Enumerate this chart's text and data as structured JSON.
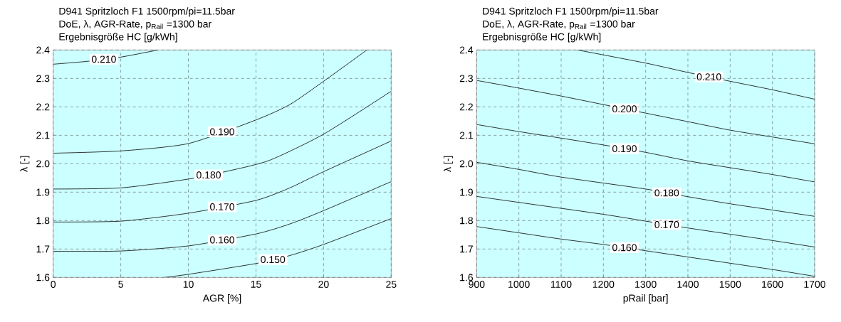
{
  "chart_data": [
    {
      "type": "line",
      "title": "D941 Spritzloch F1 1500rpm/pi=11.5bar",
      "subtitle": "DoE, λ, AGR-Rate, p$_{Rail}$ =1300 bar",
      "annotations": [
        "Ergebnisgröße HC [g/kWh]"
      ],
      "xlabel": "AGR [%]",
      "ylabel": "λ [-]",
      "xlim": [
        0,
        25
      ],
      "ylim": [
        1.6,
        2.4
      ],
      "xticks": [
        0,
        5,
        10,
        15,
        20,
        25
      ],
      "yticks": [
        1.6,
        1.7,
        1.8,
        1.9,
        {
          "value": 2,
          "label": "2.0"
        },
        2.1,
        2.2,
        2.3,
        2.4
      ],
      "grid": true,
      "bands": [
        {
          "axis": "y",
          "from": 1.6,
          "to": 2.4,
          "color": "#ccffff"
        }
      ],
      "series": [
        {
          "name": "0.150",
          "color": "#000000",
          "x": [
            8.2,
            10,
            15,
            17.5,
            20,
            25
          ],
          "values": [
            1.6,
            1.611,
            1.649,
            1.677,
            1.716,
            1.807
          ]
        },
        {
          "name": "0.160",
          "color": "#000000",
          "x": [
            0,
            5,
            10,
            15,
            17.5,
            20,
            25
          ],
          "values": [
            1.692,
            1.693,
            1.711,
            1.753,
            1.788,
            1.835,
            1.937
          ]
        },
        {
          "name": "0.170",
          "color": "#000000",
          "x": [
            0,
            5,
            10,
            15,
            17.5,
            20,
            25
          ],
          "values": [
            1.795,
            1.798,
            1.826,
            1.871,
            1.915,
            1.972,
            2.08
          ]
        },
        {
          "name": "0.180",
          "color": "#000000",
          "x": [
            0,
            5,
            10,
            13,
            16,
            20,
            25
          ],
          "values": [
            1.911,
            1.915,
            1.946,
            1.975,
            2.012,
            2.104,
            2.255
          ]
        },
        {
          "name": "0.190",
          "color": "#000000",
          "x": [
            0,
            5,
            10,
            15,
            17.5,
            20,
            23.2
          ],
          "values": [
            2.037,
            2.045,
            2.071,
            2.154,
            2.208,
            2.29,
            2.4
          ]
        },
        {
          "name": "0.210",
          "color": "#000000",
          "x": [
            0,
            2.5,
            5,
            7.75
          ],
          "values": [
            2.35,
            2.36,
            2.375,
            2.4
          ]
        }
      ]
    },
    {
      "type": "line",
      "title": "D941 Spritzloch F1 1500rpm/pi=11.5bar",
      "subtitle": "DoE, λ, AGR-Rate, p$_{Rail}$ =1300 bar",
      "annotations": [
        "Ergebnisgröße HC [g/kWh]"
      ],
      "xlabel": "pRail [bar]",
      "ylabel": "λ [-]",
      "xlim": [
        900,
        1700
      ],
      "ylim": [
        1.6,
        2.4
      ],
      "xticks": [
        900,
        1000,
        1100,
        1200,
        1300,
        1400,
        1500,
        1600,
        1700
      ],
      "yticks": [
        1.6,
        1.7,
        1.8,
        1.9,
        {
          "value": 2,
          "label": "2.0"
        },
        2.1,
        2.2,
        2.3,
        2.4
      ],
      "grid": true,
      "bands": [
        {
          "axis": "y",
          "from": 1.6,
          "to": 2.4,
          "color": "#ccffff"
        }
      ],
      "series": [
        {
          "name": "0.160",
          "color": "#000000",
          "x": [
            900,
            1000,
            1100,
            1200,
            1300,
            1400,
            1500,
            1600,
            1700
          ],
          "values": [
            1.779,
            1.757,
            1.735,
            1.716,
            1.694,
            1.672,
            1.65,
            1.628,
            1.604
          ]
        },
        {
          "name": "0.170",
          "color": "#000000",
          "x": [
            900,
            1000,
            1200,
            1300,
            1400,
            1500,
            1600,
            1700
          ],
          "values": [
            1.885,
            1.864,
            1.822,
            1.798,
            1.774,
            1.752,
            1.73,
            1.707
          ]
        },
        {
          "name": "0.180",
          "color": "#000000",
          "x": [
            900,
            1000,
            1100,
            1300,
            1400,
            1500,
            1600,
            1700
          ],
          "values": [
            2.005,
            1.98,
            1.953,
            1.911,
            1.884,
            1.859,
            1.837,
            1.815
          ]
        },
        {
          "name": "0.190",
          "color": "#000000",
          "x": [
            900,
            1000,
            1100,
            1200,
            1300,
            1400,
            1500,
            1600,
            1700
          ],
          "values": [
            2.138,
            2.113,
            2.09,
            2.066,
            2.04,
            2.01,
            1.986,
            1.962,
            1.936
          ]
        },
        {
          "name": "0.200",
          "color": "#000000",
          "x": [
            900,
            1000,
            1100,
            1200,
            1300,
            1400,
            1500,
            1600,
            1700
          ],
          "values": [
            2.293,
            2.266,
            2.238,
            2.208,
            2.178,
            2.148,
            2.118,
            2.094,
            2.07
          ]
        },
        {
          "name": "0.210",
          "color": "#000000",
          "x": [
            1139,
            1300,
            1400,
            1500,
            1600,
            1700
          ],
          "values": [
            2.4,
            2.354,
            2.321,
            2.29,
            2.26,
            2.227
          ]
        }
      ]
    }
  ]
}
